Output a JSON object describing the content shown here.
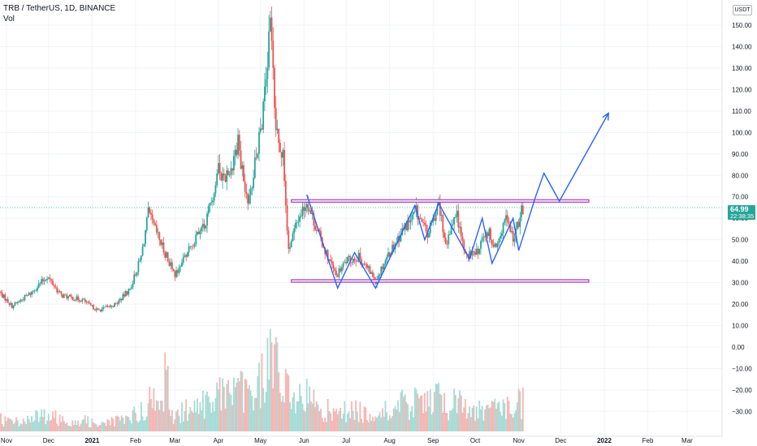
{
  "header": {
    "title": "TRB / TetherUS, 1D, BINANCE",
    "volume_label": "Vol",
    "currency": "USDT"
  },
  "price_badge": {
    "price": "64.99",
    "countdown": "22:38:35",
    "color": "#26a69a"
  },
  "colors": {
    "up": "#26a69a",
    "down": "#ef5350",
    "vol_up": "#a6dcd6",
    "vol_down": "#f7b5b3",
    "pattern_line": "#2962ff",
    "zone_border": "#9c27b0",
    "zone_fill": "#f3e0f7"
  },
  "chart_data": {
    "type": "candlestick",
    "symbol": "TRB / TetherUS",
    "interval": "1D",
    "exchange": "BINANCE",
    "y_axis": {
      "ticks": [
        150.0,
        140.0,
        130.0,
        120.0,
        110.0,
        100.0,
        90.0,
        80.0,
        70.0,
        60.0,
        50.0,
        40.0,
        30.0,
        20.0,
        10.0,
        0.0,
        -10.0,
        -20.0,
        -30.0
      ],
      "tick_labels": [
        "150.00",
        "140.00",
        "130.00",
        "120.00",
        "110.00",
        "100.00",
        "90.00",
        "80.00",
        "70.00",
        "60.00",
        "50.00",
        "40.00",
        "30.00",
        "20.00",
        "10.00",
        "0.00",
        "−10.00",
        "−20.00",
        "−30.00"
      ],
      "range": [
        -34,
        160
      ]
    },
    "x_axis": {
      "range": [
        "2020-11-01",
        "2022-03-20"
      ],
      "ticks": [
        {
          "date": "2020-11-01",
          "label": "Nov",
          "bold": false
        },
        {
          "date": "2020-12-01",
          "label": "Dec",
          "bold": false
        },
        {
          "date": "2021-01-01",
          "label": "2021",
          "bold": true
        },
        {
          "date": "2021-02-01",
          "label": "Feb",
          "bold": false
        },
        {
          "date": "2021-03-01",
          "label": "Mar",
          "bold": false
        },
        {
          "date": "2021-04-01",
          "label": "Apr",
          "bold": false
        },
        {
          "date": "2021-05-01",
          "label": "May",
          "bold": false
        },
        {
          "date": "2021-06-01",
          "label": "Jun",
          "bold": false
        },
        {
          "date": "2021-07-01",
          "label": "Jul",
          "bold": false
        },
        {
          "date": "2021-08-01",
          "label": "Aug",
          "bold": false
        },
        {
          "date": "2021-09-01",
          "label": "Sep",
          "bold": false
        },
        {
          "date": "2021-10-01",
          "label": "Oct",
          "bold": false
        },
        {
          "date": "2021-11-01",
          "label": "Nov",
          "bold": false
        },
        {
          "date": "2021-12-01",
          "label": "Dec",
          "bold": false
        },
        {
          "date": "2022-01-01",
          "label": "2022",
          "bold": true
        },
        {
          "date": "2022-02-01",
          "label": "Feb",
          "bold": false
        },
        {
          "date": "2022-03-01",
          "label": "Mar",
          "bold": false
        }
      ]
    },
    "price_path": [
      [
        "2020-10-25",
        27
      ],
      [
        "2020-11-05",
        19
      ],
      [
        "2020-11-18",
        25
      ],
      [
        "2020-11-30",
        33
      ],
      [
        "2020-12-10",
        24
      ],
      [
        "2020-12-25",
        22
      ],
      [
        "2021-01-05",
        17
      ],
      [
        "2021-01-18",
        20
      ],
      [
        "2021-01-28",
        27
      ],
      [
        "2021-02-05",
        42
      ],
      [
        "2021-02-10",
        62
      ],
      [
        "2021-02-18",
        50
      ],
      [
        "2021-03-01",
        33
      ],
      [
        "2021-03-10",
        45
      ],
      [
        "2021-03-22",
        56
      ],
      [
        "2021-04-01",
        82
      ],
      [
        "2021-04-08",
        80
      ],
      [
        "2021-04-15",
        95
      ],
      [
        "2021-04-22",
        64
      ],
      [
        "2021-04-28",
        90
      ],
      [
        "2021-05-03",
        110
      ],
      [
        "2021-05-08",
        150
      ],
      [
        "2021-05-12",
        105
      ],
      [
        "2021-05-17",
        88
      ],
      [
        "2021-05-21",
        46
      ],
      [
        "2021-05-28",
        60
      ],
      [
        "2021-06-03",
        68
      ],
      [
        "2021-06-10",
        55
      ],
      [
        "2021-06-18",
        42
      ],
      [
        "2021-06-24",
        33
      ],
      [
        "2021-07-01",
        40
      ],
      [
        "2021-07-10",
        42
      ],
      [
        "2021-07-18",
        35
      ],
      [
        "2021-07-22",
        31
      ],
      [
        "2021-07-30",
        42
      ],
      [
        "2021-08-10",
        54
      ],
      [
        "2021-08-20",
        63
      ],
      [
        "2021-08-28",
        52
      ],
      [
        "2021-09-05",
        66
      ],
      [
        "2021-09-10",
        48
      ],
      [
        "2021-09-18",
        62
      ],
      [
        "2021-09-23",
        44
      ],
      [
        "2021-10-01",
        43
      ],
      [
        "2021-10-10",
        54
      ],
      [
        "2021-10-16",
        46
      ],
      [
        "2021-10-23",
        59
      ],
      [
        "2021-10-28",
        50
      ],
      [
        "2021-11-04",
        65
      ]
    ],
    "volume": {
      "spikes": [
        [
          "2021-02-23",
          18
        ],
        [
          "2021-04-22",
          10
        ],
        [
          "2021-05-12",
          22
        ],
        [
          "2021-05-20",
          13
        ],
        [
          "2021-09-03",
          10
        ]
      ],
      "baseline": 4
    },
    "annotations": {
      "resistance_zone": {
        "from": "2021-05-23",
        "to": "2021-12-21",
        "low": 67.5,
        "high": 68.7
      },
      "support_zone": {
        "from": "2021-05-23",
        "to": "2021-12-21",
        "low": 30.2,
        "high": 31.4
      },
      "pattern_path": [
        [
          "2021-06-03",
          71
        ],
        [
          "2021-06-25",
          27.5
        ],
        [
          "2021-07-07",
          44
        ],
        [
          "2021-07-22",
          27.5
        ],
        [
          "2021-08-19",
          66
        ],
        [
          "2021-08-26",
          50
        ],
        [
          "2021-09-05",
          67
        ],
        [
          "2021-09-27",
          41
        ],
        [
          "2021-10-06",
          60
        ],
        [
          "2021-10-13",
          39
        ],
        [
          "2021-10-28",
          60
        ],
        [
          "2021-11-01",
          45
        ],
        [
          "2021-11-13",
          70
        ],
        [
          "2021-11-19",
          81
        ],
        [
          "2021-11-30",
          68
        ],
        [
          "2022-01-04",
          109
        ]
      ]
    },
    "last_price": 64.99
  }
}
